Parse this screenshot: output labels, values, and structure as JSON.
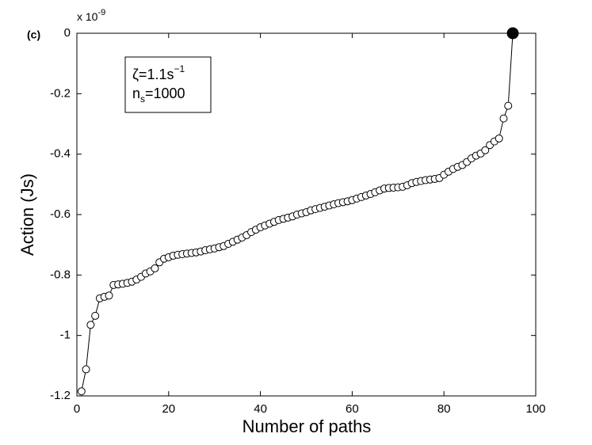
{
  "chart_data": {
    "type": "line",
    "panel_label": "(c)",
    "multiplier": {
      "base": "x 10",
      "exponent": "-9"
    },
    "xlabel": "Number of paths",
    "ylabel": "Action (Js)",
    "annotation": {
      "zeta": "ζ=1.1s",
      "zeta_exp": "−1",
      "n": "n",
      "n_sub": "s",
      "n_val": "=1000"
    },
    "x": [
      1,
      2,
      3,
      4,
      5,
      6,
      7,
      8,
      9,
      10,
      11,
      12,
      13,
      14,
      15,
      16,
      17,
      18,
      19,
      20,
      21,
      22,
      23,
      24,
      25,
      26,
      27,
      28,
      29,
      30,
      31,
      32,
      33,
      34,
      35,
      36,
      37,
      38,
      39,
      40,
      41,
      42,
      43,
      44,
      45,
      46,
      47,
      48,
      49,
      50,
      51,
      52,
      53,
      54,
      55,
      56,
      57,
      58,
      59,
      60,
      61,
      62,
      63,
      64,
      65,
      66,
      67,
      68,
      69,
      70,
      71,
      72,
      73,
      74,
      75,
      76,
      77,
      78,
      79,
      80,
      81,
      82,
      83,
      84,
      85,
      86,
      87,
      88,
      89,
      90,
      91,
      92,
      93,
      94,
      95
    ],
    "values": [
      -1.185,
      -1.112,
      -0.965,
      -0.935,
      -0.877,
      -0.872,
      -0.868,
      -0.833,
      -0.831,
      -0.829,
      -0.826,
      -0.822,
      -0.815,
      -0.806,
      -0.795,
      -0.788,
      -0.778,
      -0.758,
      -0.746,
      -0.741,
      -0.736,
      -0.733,
      -0.731,
      -0.729,
      -0.727,
      -0.725,
      -0.722,
      -0.718,
      -0.715,
      -0.712,
      -0.708,
      -0.704,
      -0.697,
      -0.69,
      -0.683,
      -0.676,
      -0.668,
      -0.658,
      -0.65,
      -0.642,
      -0.636,
      -0.63,
      -0.624,
      -0.618,
      -0.614,
      -0.61,
      -0.606,
      -0.6,
      -0.596,
      -0.592,
      -0.586,
      -0.582,
      -0.578,
      -0.574,
      -0.57,
      -0.566,
      -0.562,
      -0.559,
      -0.556,
      -0.552,
      -0.547,
      -0.542,
      -0.537,
      -0.532,
      -0.526,
      -0.52,
      -0.514,
      -0.512,
      -0.511,
      -0.51,
      -0.508,
      -0.503,
      -0.496,
      -0.492,
      -0.489,
      -0.486,
      -0.484,
      -0.482,
      -0.479,
      -0.468,
      -0.458,
      -0.449,
      -0.442,
      -0.436,
      -0.426,
      -0.414,
      -0.405,
      -0.398,
      -0.387,
      -0.37,
      -0.358,
      -0.348,
      -0.282,
      -0.24,
      0
    ],
    "color": "#000000",
    "highlight_index": 94,
    "xlim": [
      0,
      100
    ],
    "xticks": [
      0,
      20,
      40,
      60,
      80,
      100
    ],
    "ylim": [
      -1.2,
      0
    ],
    "yticks": [
      0,
      -0.2,
      -0.4,
      -0.6,
      -0.8,
      -1,
      -1.2
    ]
  }
}
